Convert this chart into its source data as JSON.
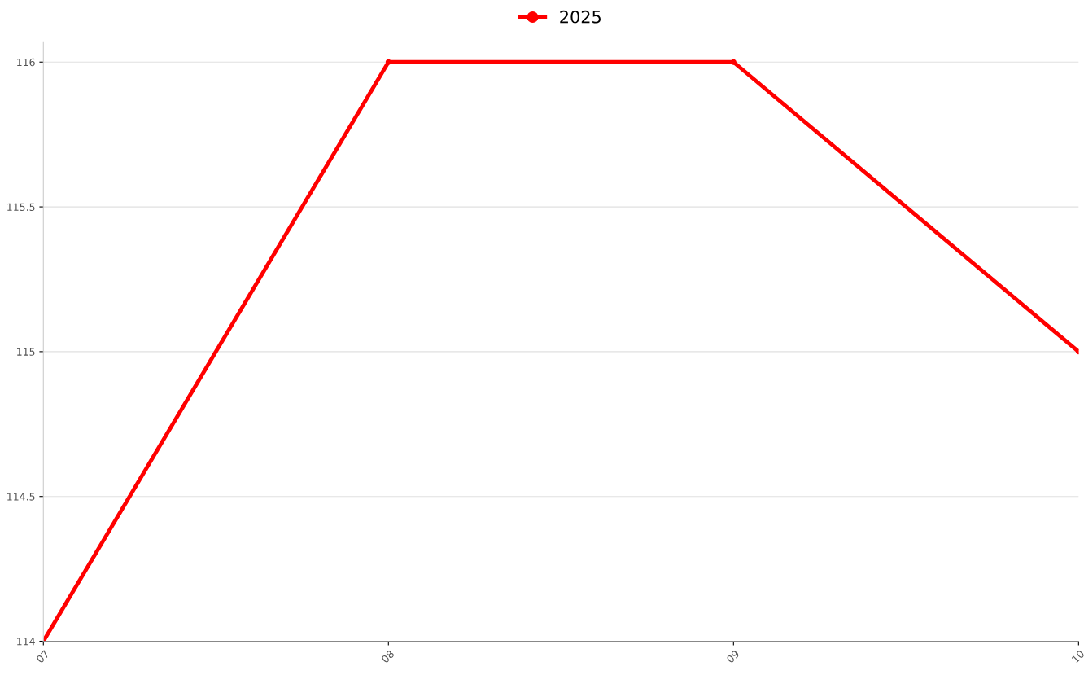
{
  "chart_data": {
    "type": "line",
    "categories": [
      "07",
      "08",
      "09",
      "10"
    ],
    "series": [
      {
        "name": "2025",
        "color": "#ff0000",
        "values": [
          114,
          116,
          116,
          115
        ]
      }
    ],
    "ylim": [
      114,
      116.07
    ],
    "yticks": [
      114,
      114.5,
      115,
      115.5,
      116
    ],
    "grid": "y",
    "legend": "top",
    "marker": "circle"
  }
}
